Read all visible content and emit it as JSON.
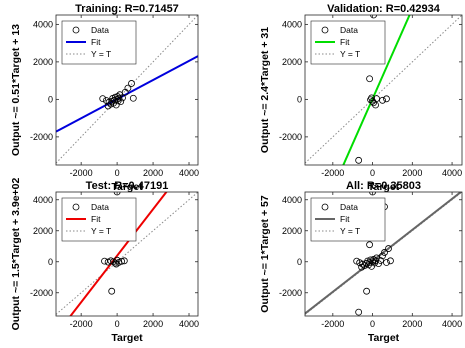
{
  "chart_data": [
    {
      "type": "scatter",
      "title": "Training: R=0.71457",
      "xlabel": "Target",
      "ylabel": "Output ~= 0.51*Target + 13",
      "xlim": [
        -3400,
        4500
      ],
      "ylim": [
        -3500,
        4500
      ],
      "xticks": [
        -2000,
        0,
        2000,
        4000
      ],
      "yticks": [
        -2000,
        0,
        2000,
        4000
      ],
      "grid": false,
      "legend": {
        "entries": [
          "Data",
          "Fit",
          "Y = T"
        ],
        "placement": "top-left"
      },
      "fit": {
        "slope": 0.51,
        "intercept": 13,
        "color": "#0000dd"
      },
      "points": [
        [
          -800,
          40
        ],
        [
          -600,
          -60
        ],
        [
          -450,
          -150
        ],
        [
          -350,
          -250
        ],
        [
          -300,
          -100
        ],
        [
          -250,
          50
        ],
        [
          -200,
          -200
        ],
        [
          -150,
          -50
        ],
        [
          -100,
          120
        ],
        [
          -50,
          -300
        ],
        [
          0,
          0
        ],
        [
          30,
          150
        ],
        [
          60,
          -80
        ],
        [
          100,
          60
        ],
        [
          150,
          250
        ],
        [
          200,
          -120
        ],
        [
          300,
          80
        ],
        [
          450,
          380
        ],
        [
          600,
          600
        ],
        [
          800,
          850
        ],
        [
          900,
          60
        ],
        [
          -500,
          -350
        ]
      ]
    },
    {
      "type": "scatter",
      "title": "Validation: R=0.42934",
      "xlabel": "Target",
      "ylabel": "Output ~= 2.4*Target + 31",
      "xlim": [
        -3400,
        4500
      ],
      "ylim": [
        -3500,
        4500
      ],
      "xticks": [
        -2000,
        0,
        2000,
        4000
      ],
      "yticks": [
        -2000,
        0,
        2000,
        4000
      ],
      "grid": false,
      "legend": {
        "entries": [
          "Data",
          "Fit",
          "Y = T"
        ],
        "placement": "top-left"
      },
      "fit": {
        "slope": 2.4,
        "intercept": 31,
        "color": "#00dd00"
      },
      "points": [
        [
          50,
          4500
        ],
        [
          -150,
          1100
        ],
        [
          -700,
          -3250
        ],
        [
          0,
          -100
        ],
        [
          -100,
          -20
        ],
        [
          50,
          -180
        ],
        [
          200,
          40
        ],
        [
          500,
          -50
        ],
        [
          700,
          30
        ],
        [
          150,
          -300
        ],
        [
          -50,
          80
        ]
      ]
    },
    {
      "type": "scatter",
      "title": "Test: R=0.47191",
      "xlabel": "Target",
      "ylabel": "Output ~= 1.5*Target + 3.9e+02",
      "xlim": [
        -3400,
        4500
      ],
      "ylim": [
        -3500,
        4500
      ],
      "xticks": [
        -2000,
        0,
        2000,
        4000
      ],
      "yticks": [
        -2000,
        0,
        2000,
        4000
      ],
      "grid": false,
      "legend": {
        "entries": [
          "Data",
          "Fit",
          "Y = T"
        ],
        "placement": "top-left"
      },
      "fit": {
        "slope": 1.5,
        "intercept": 390,
        "color": "#ee0000"
      },
      "points": [
        [
          0,
          4500
        ],
        [
          -150,
          1600
        ],
        [
          -300,
          -1900
        ],
        [
          -700,
          40
        ],
        [
          -500,
          -20
        ],
        [
          -350,
          60
        ],
        [
          -200,
          0
        ],
        [
          -100,
          -80
        ],
        [
          0,
          100
        ],
        [
          100,
          -40
        ],
        [
          250,
          30
        ],
        [
          400,
          60
        ],
        [
          -50,
          -150
        ]
      ]
    },
    {
      "type": "scatter",
      "title": "All: R=0.35803",
      "xlabel": "Target",
      "ylabel": "Output ~= 1*Target + 57",
      "xlim": [
        -3400,
        4500
      ],
      "ylim": [
        -3500,
        4500
      ],
      "xticks": [
        -2000,
        0,
        2000,
        4000
      ],
      "yticks": [
        -2000,
        0,
        2000,
        4000
      ],
      "grid": false,
      "legend": {
        "entries": [
          "Data",
          "Fit",
          "Y = T"
        ],
        "placement": "top-left"
      },
      "fit": {
        "slope": 1.0,
        "intercept": 57,
        "color": "#666666"
      },
      "points": [
        [
          0,
          4500
        ],
        [
          600,
          3550
        ],
        [
          -150,
          1600
        ],
        [
          -150,
          1100
        ],
        [
          -300,
          -1900
        ],
        [
          -700,
          -3250
        ],
        [
          -800,
          40
        ],
        [
          -650,
          -60
        ],
        [
          -500,
          -150
        ],
        [
          -400,
          -250
        ],
        [
          -300,
          -100
        ],
        [
          -250,
          50
        ],
        [
          -200,
          -200
        ],
        [
          -150,
          -50
        ],
        [
          -100,
          120
        ],
        [
          -50,
          -300
        ],
        [
          0,
          0
        ],
        [
          50,
          150
        ],
        [
          100,
          -80
        ],
        [
          150,
          60
        ],
        [
          200,
          250
        ],
        [
          300,
          -120
        ],
        [
          400,
          80
        ],
        [
          500,
          380
        ],
        [
          600,
          600
        ],
        [
          800,
          850
        ],
        [
          900,
          60
        ],
        [
          -550,
          -350
        ],
        [
          700,
          -50
        ]
      ]
    }
  ]
}
